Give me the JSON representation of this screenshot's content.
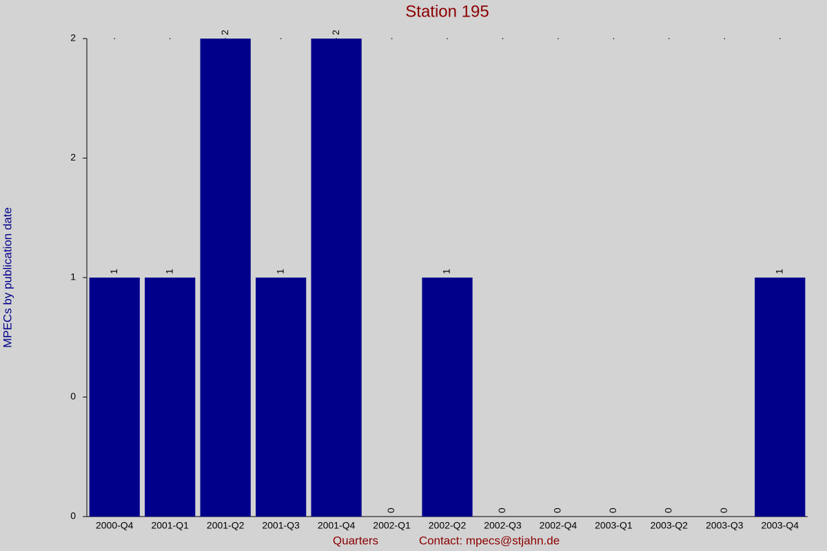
{
  "chart_data": {
    "type": "bar",
    "title": "Station 195",
    "y_label": "MPECs by publication date",
    "x_label": "Quarters",
    "annotation": "Contact: mpecs@stjahn.de",
    "categories": [
      "2000-Q4",
      "2001-Q1",
      "2001-Q2",
      "2001-Q3",
      "2001-Q4",
      "2002-Q1",
      "2002-Q2",
      "2002-Q3",
      "2002-Q4",
      "2003-Q1",
      "2003-Q2",
      "2003-Q3",
      "2003-Q4"
    ],
    "values": [
      1,
      1,
      2,
      1,
      2,
      0,
      1,
      0,
      0,
      0,
      0,
      0,
      1
    ],
    "color": "#00008b",
    "ylim": [
      0,
      2
    ],
    "yticks": [
      0,
      {
        "value": 0.5,
        "label": "0"
      },
      1,
      {
        "value": 1.5,
        "label": "2"
      },
      2
    ],
    "grid": false
  }
}
